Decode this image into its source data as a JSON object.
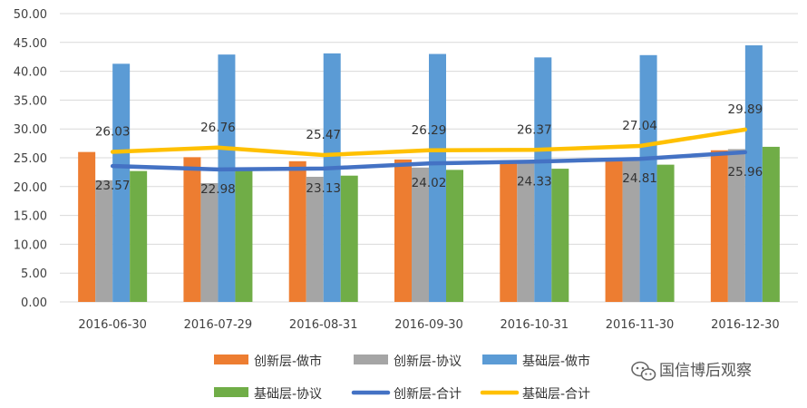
{
  "chart_data": {
    "type": "bar",
    "categories": [
      "2016-06-30",
      "2016-07-29",
      "2016-08-31",
      "2016-09-30",
      "2016-10-31",
      "2016-11-30",
      "2016-12-30"
    ],
    "ylim": [
      0,
      50
    ],
    "yticks": [
      "0.00",
      "5.00",
      "10.00",
      "15.00",
      "20.00",
      "25.00",
      "30.00",
      "35.00",
      "40.00",
      "45.00",
      "50.00"
    ],
    "grid": true,
    "legend_position": "bottom",
    "series": [
      {
        "name": "创新层-做市",
        "kind": "bar",
        "color": "#ED7D31",
        "values": [
          26.0,
          25.1,
          24.4,
          24.7,
          24.5,
          24.8,
          26.3
        ]
      },
      {
        "name": "创新层-协议",
        "kind": "bar",
        "color": "#A5A5A5",
        "values": [
          21.1,
          20.6,
          21.7,
          23.3,
          24.3,
          24.8,
          26.5
        ]
      },
      {
        "name": "基础层-做市",
        "kind": "bar",
        "color": "#5B9BD5",
        "values": [
          41.3,
          42.9,
          43.1,
          43.0,
          42.4,
          42.8,
          44.5
        ]
      },
      {
        "name": "基础层-协议",
        "kind": "bar",
        "color": "#70AD47",
        "values": [
          22.7,
          22.9,
          21.9,
          22.9,
          23.1,
          23.8,
          26.9
        ]
      },
      {
        "name": "创新层-合计",
        "kind": "line",
        "color": "#4472C4",
        "values": [
          23.57,
          22.98,
          23.13,
          24.02,
          24.33,
          24.81,
          25.96
        ],
        "labels": [
          "23.57",
          "22.98",
          "23.13",
          "24.02",
          "24.33",
          "24.81",
          "25.96"
        ]
      },
      {
        "name": "基础层-合计",
        "kind": "line",
        "color": "#FFC000",
        "values": [
          26.03,
          26.76,
          25.47,
          26.29,
          26.37,
          27.04,
          29.89
        ],
        "labels": [
          "26.03",
          "26.76",
          "25.47",
          "26.29",
          "26.37",
          "27.04",
          "29.89"
        ]
      }
    ]
  },
  "watermark": {
    "text": "国信博后观察",
    "icon": "wechat-icon"
  }
}
